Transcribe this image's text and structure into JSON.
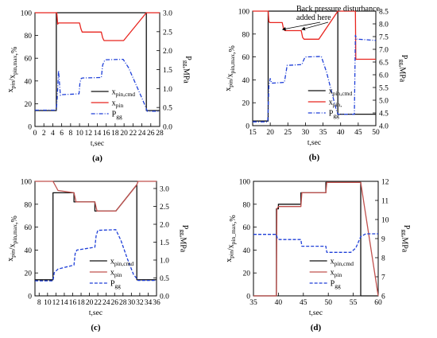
{
  "chart_data": [
    {
      "type": "line",
      "panel_label": "(a)",
      "xlabel": "t,sec",
      "ylabel": "x_pin/x_pin,max,%",
      "ylabel2": "P_gg,MPa",
      "xlim": [
        0,
        28
      ],
      "ylim": [
        0,
        100
      ],
      "y2lim": [
        0,
        3.0
      ],
      "xticks": [
        0,
        2,
        4,
        6,
        8,
        10,
        12,
        14,
        16,
        18,
        20,
        22,
        24,
        26,
        28
      ],
      "yticks": [
        0,
        20,
        40,
        60,
        80,
        100
      ],
      "y2ticks": [
        0.0,
        0.5,
        1.0,
        1.5,
        2.0,
        2.5,
        3.0
      ],
      "legend": [
        "x_pin,cmd",
        "x_pin",
        "P_gg"
      ],
      "legend_position": "lower-right",
      "series": [
        {
          "name": "x_pin,cmd",
          "axis": "left",
          "color": "#111111",
          "style": "solid",
          "x": [
            0,
            4.8,
            4.8,
            25,
            25,
            28
          ],
          "y": [
            14,
            14,
            100,
            100,
            14,
            14
          ]
        },
        {
          "name": "x_pin",
          "axis": "left",
          "color": "#e8251f",
          "style": "solid",
          "x": [
            0,
            4.9,
            5.1,
            5.3,
            10,
            10.3,
            10.6,
            14.9,
            15.2,
            15.5,
            19.9,
            25,
            28
          ],
          "y": [
            100,
            100,
            90,
            91,
            91,
            86,
            83,
            83,
            78,
            75.5,
            75.5,
            100,
            100
          ]
        },
        {
          "name": "P_gg",
          "axis": "right",
          "color": "#1e3fd8",
          "style": "dashdot",
          "x": [
            0,
            4.8,
            5.0,
            5.3,
            5.7,
            6.2,
            9.9,
            10.1,
            10.4,
            10.8,
            14.9,
            15.2,
            15.6,
            16.0,
            19.8,
            21,
            22.5,
            24,
            24.9,
            25.2,
            28
          ],
          "y": [
            0.43,
            0.43,
            0.75,
            1.47,
            0.82,
            0.84,
            0.86,
            1.15,
            1.27,
            1.28,
            1.29,
            1.62,
            1.73,
            1.76,
            1.77,
            1.55,
            1.15,
            0.75,
            0.5,
            0.4,
            0.4
          ]
        }
      ]
    },
    {
      "type": "line",
      "panel_label": "(b)",
      "xlabel": "t,sec",
      "ylabel": "x_pin/x_pin,max,%",
      "ylabel2": "P_gg,MPa",
      "xlim": [
        15,
        50
      ],
      "ylim": [
        0,
        100
      ],
      "y2lim": [
        4.0,
        8.5
      ],
      "xticks": [
        15,
        20,
        25,
        30,
        35,
        40,
        45,
        50
      ],
      "yticks": [
        0,
        20,
        40,
        60,
        80,
        100
      ],
      "y2ticks": [
        4.0,
        4.5,
        5.0,
        5.5,
        6.0,
        6.5,
        7.0,
        7.5,
        8.0,
        8.5
      ],
      "legend": [
        "x_pin,cmd",
        "x_pin,",
        "P_gg"
      ],
      "legend_position": "lower-right",
      "annotation": {
        "lines": [
          "Back pressure disturbance",
          "added here"
        ],
        "arrow_targets_x": [
          23.5,
          29
        ]
      },
      "series": [
        {
          "name": "x_pin,cmd",
          "axis": "left",
          "color": "#111111",
          "style": "solid",
          "x": [
            15,
            19.4,
            19.4,
            39.2,
            39.2,
            50
          ],
          "y": [
            4,
            4,
            100,
            100,
            10,
            10
          ]
        },
        {
          "name": "x_pin,",
          "axis": "left",
          "color": "#e8251f",
          "style": "solid",
          "x": [
            15,
            19.4,
            19.6,
            19.9,
            23.4,
            23.8,
            24.2,
            28.8,
            29.2,
            29.6,
            33.8,
            39.2,
            44.2,
            44.3,
            50
          ],
          "y": [
            100,
            100,
            91,
            90,
            90,
            84,
            83,
            83,
            77,
            75.5,
            75.5,
            100,
            100,
            58,
            58
          ]
        },
        {
          "name": "P_gg",
          "axis": "right",
          "color": "#1e3fd8",
          "style": "dashdot",
          "x": [
            15,
            19.3,
            19.6,
            20.0,
            20.4,
            24.0,
            24.4,
            24.8,
            29.0,
            29.4,
            29.9,
            34.5,
            36,
            37.5,
            38.8,
            39.2,
            43.9,
            44.2,
            44.6,
            50
          ],
          "y": [
            4.15,
            4.15,
            5.55,
            5.85,
            5.67,
            5.7,
            6.02,
            6.37,
            6.4,
            6.55,
            6.7,
            6.72,
            6.1,
            5.3,
            4.6,
            4.45,
            4.45,
            7.55,
            7.4,
            7.35
          ]
        }
      ]
    },
    {
      "type": "line",
      "panel_label": "(c)",
      "xlabel": "t,sec",
      "ylabel": "x_pin/x_pin,max,%",
      "ylabel2": "P_gg,MPa",
      "xlim": [
        7,
        36
      ],
      "ylim": [
        0,
        100
      ],
      "y2lim": [
        0,
        3.0
      ],
      "xticks": [
        8,
        10,
        12,
        14,
        16,
        18,
        20,
        22,
        24,
        26,
        28,
        30,
        32,
        34,
        36
      ],
      "yticks": [
        0,
        20,
        40,
        60,
        80,
        100
      ],
      "y2ticks": [
        0.0,
        0.5,
        1.0,
        1.5,
        2.0,
        2.5,
        3.0
      ],
      "legend": [
        "x_pin,cmd",
        "x_pin",
        "P_gg"
      ],
      "legend_position": "lower-right",
      "series": [
        {
          "name": "x_pin,cmd",
          "axis": "left",
          "color": "#111111",
          "style": "solid",
          "x": [
            7,
            11.3,
            11.3,
            16.3,
            16.3,
            21.3,
            21.3,
            26.3,
            31.3,
            31.3,
            36
          ],
          "y": [
            14,
            14,
            90,
            90,
            82,
            82,
            74,
            74,
            97,
            14,
            14
          ]
        },
        {
          "name": "x_pin",
          "axis": "left",
          "color": "#c0504d",
          "style": "solid",
          "x": [
            7,
            11.3,
            12.5,
            16.3,
            16.8,
            21.3,
            21.8,
            26.3,
            31.3,
            31.6,
            36
          ],
          "y": [
            100,
            100,
            92,
            90,
            82,
            82,
            74,
            74,
            97,
            100,
            100
          ]
        },
        {
          "name": "P_gg",
          "axis": "right",
          "color": "#1e3fd8",
          "style": "dashed",
          "x": [
            7,
            11.3,
            11.6,
            12.5,
            16.3,
            16.6,
            17,
            21.3,
            21.6,
            22,
            26.3,
            27.5,
            29,
            30.5,
            31.3,
            31.6,
            36
          ],
          "y": [
            0.42,
            0.42,
            0.65,
            0.75,
            0.86,
            1.18,
            1.28,
            1.36,
            1.68,
            1.83,
            1.85,
            1.55,
            1.05,
            0.6,
            0.48,
            0.43,
            0.43
          ]
        }
      ]
    },
    {
      "type": "line",
      "panel_label": "(d)",
      "xlabel": "t,sec",
      "ylabel": "x_pin/x_pin_max,%",
      "ylabel2": "P_gg,MPa",
      "xlim": [
        35,
        60
      ],
      "ylim": [
        0,
        100
      ],
      "y2lim": [
        6,
        12
      ],
      "xticks": [
        35,
        40,
        45,
        50,
        55,
        60
      ],
      "yticks": [
        0,
        20,
        40,
        60,
        80,
        100
      ],
      "y2ticks": [
        6,
        7,
        8,
        9,
        10,
        11,
        12
      ],
      "legend": [
        "x_pin,cmd",
        "x_pin",
        "P_gg"
      ],
      "legend_position": "lower-right",
      "series": [
        {
          "name": "x_pin,cmd",
          "axis": "left",
          "color": "#111111",
          "style": "solid",
          "x": [
            35,
            39.6,
            39.6,
            40,
            40,
            44.5,
            44.5,
            49.5,
            49.5,
            56.5,
            56.5,
            60
          ],
          "y": [
            0,
            0,
            76,
            76,
            80,
            80,
            90,
            90,
            99,
            99,
            0,
            0
          ]
        },
        {
          "name": "x_pin",
          "axis": "left",
          "color": "#c0504d",
          "style": "solid",
          "x": [
            35,
            39.6,
            39.7,
            40,
            44.5,
            44.7,
            49.5,
            49.7,
            54.5,
            56.5,
            60
          ],
          "y": [
            0,
            0,
            76,
            78,
            78,
            90,
            90,
            99,
            99,
            99,
            0
          ]
        },
        {
          "name": "P_gg",
          "axis": "right",
          "color": "#1e3fd8",
          "style": "dashed",
          "x": [
            35,
            39.6,
            39.8,
            40.2,
            44.5,
            44.7,
            49.5,
            49.7,
            54.5,
            55.5,
            56.5,
            57.5,
            60
          ],
          "y": [
            9.22,
            9.22,
            9.0,
            8.95,
            8.95,
            8.6,
            8.6,
            8.28,
            8.28,
            8.5,
            9.1,
            9.25,
            9.25
          ]
        }
      ]
    }
  ]
}
